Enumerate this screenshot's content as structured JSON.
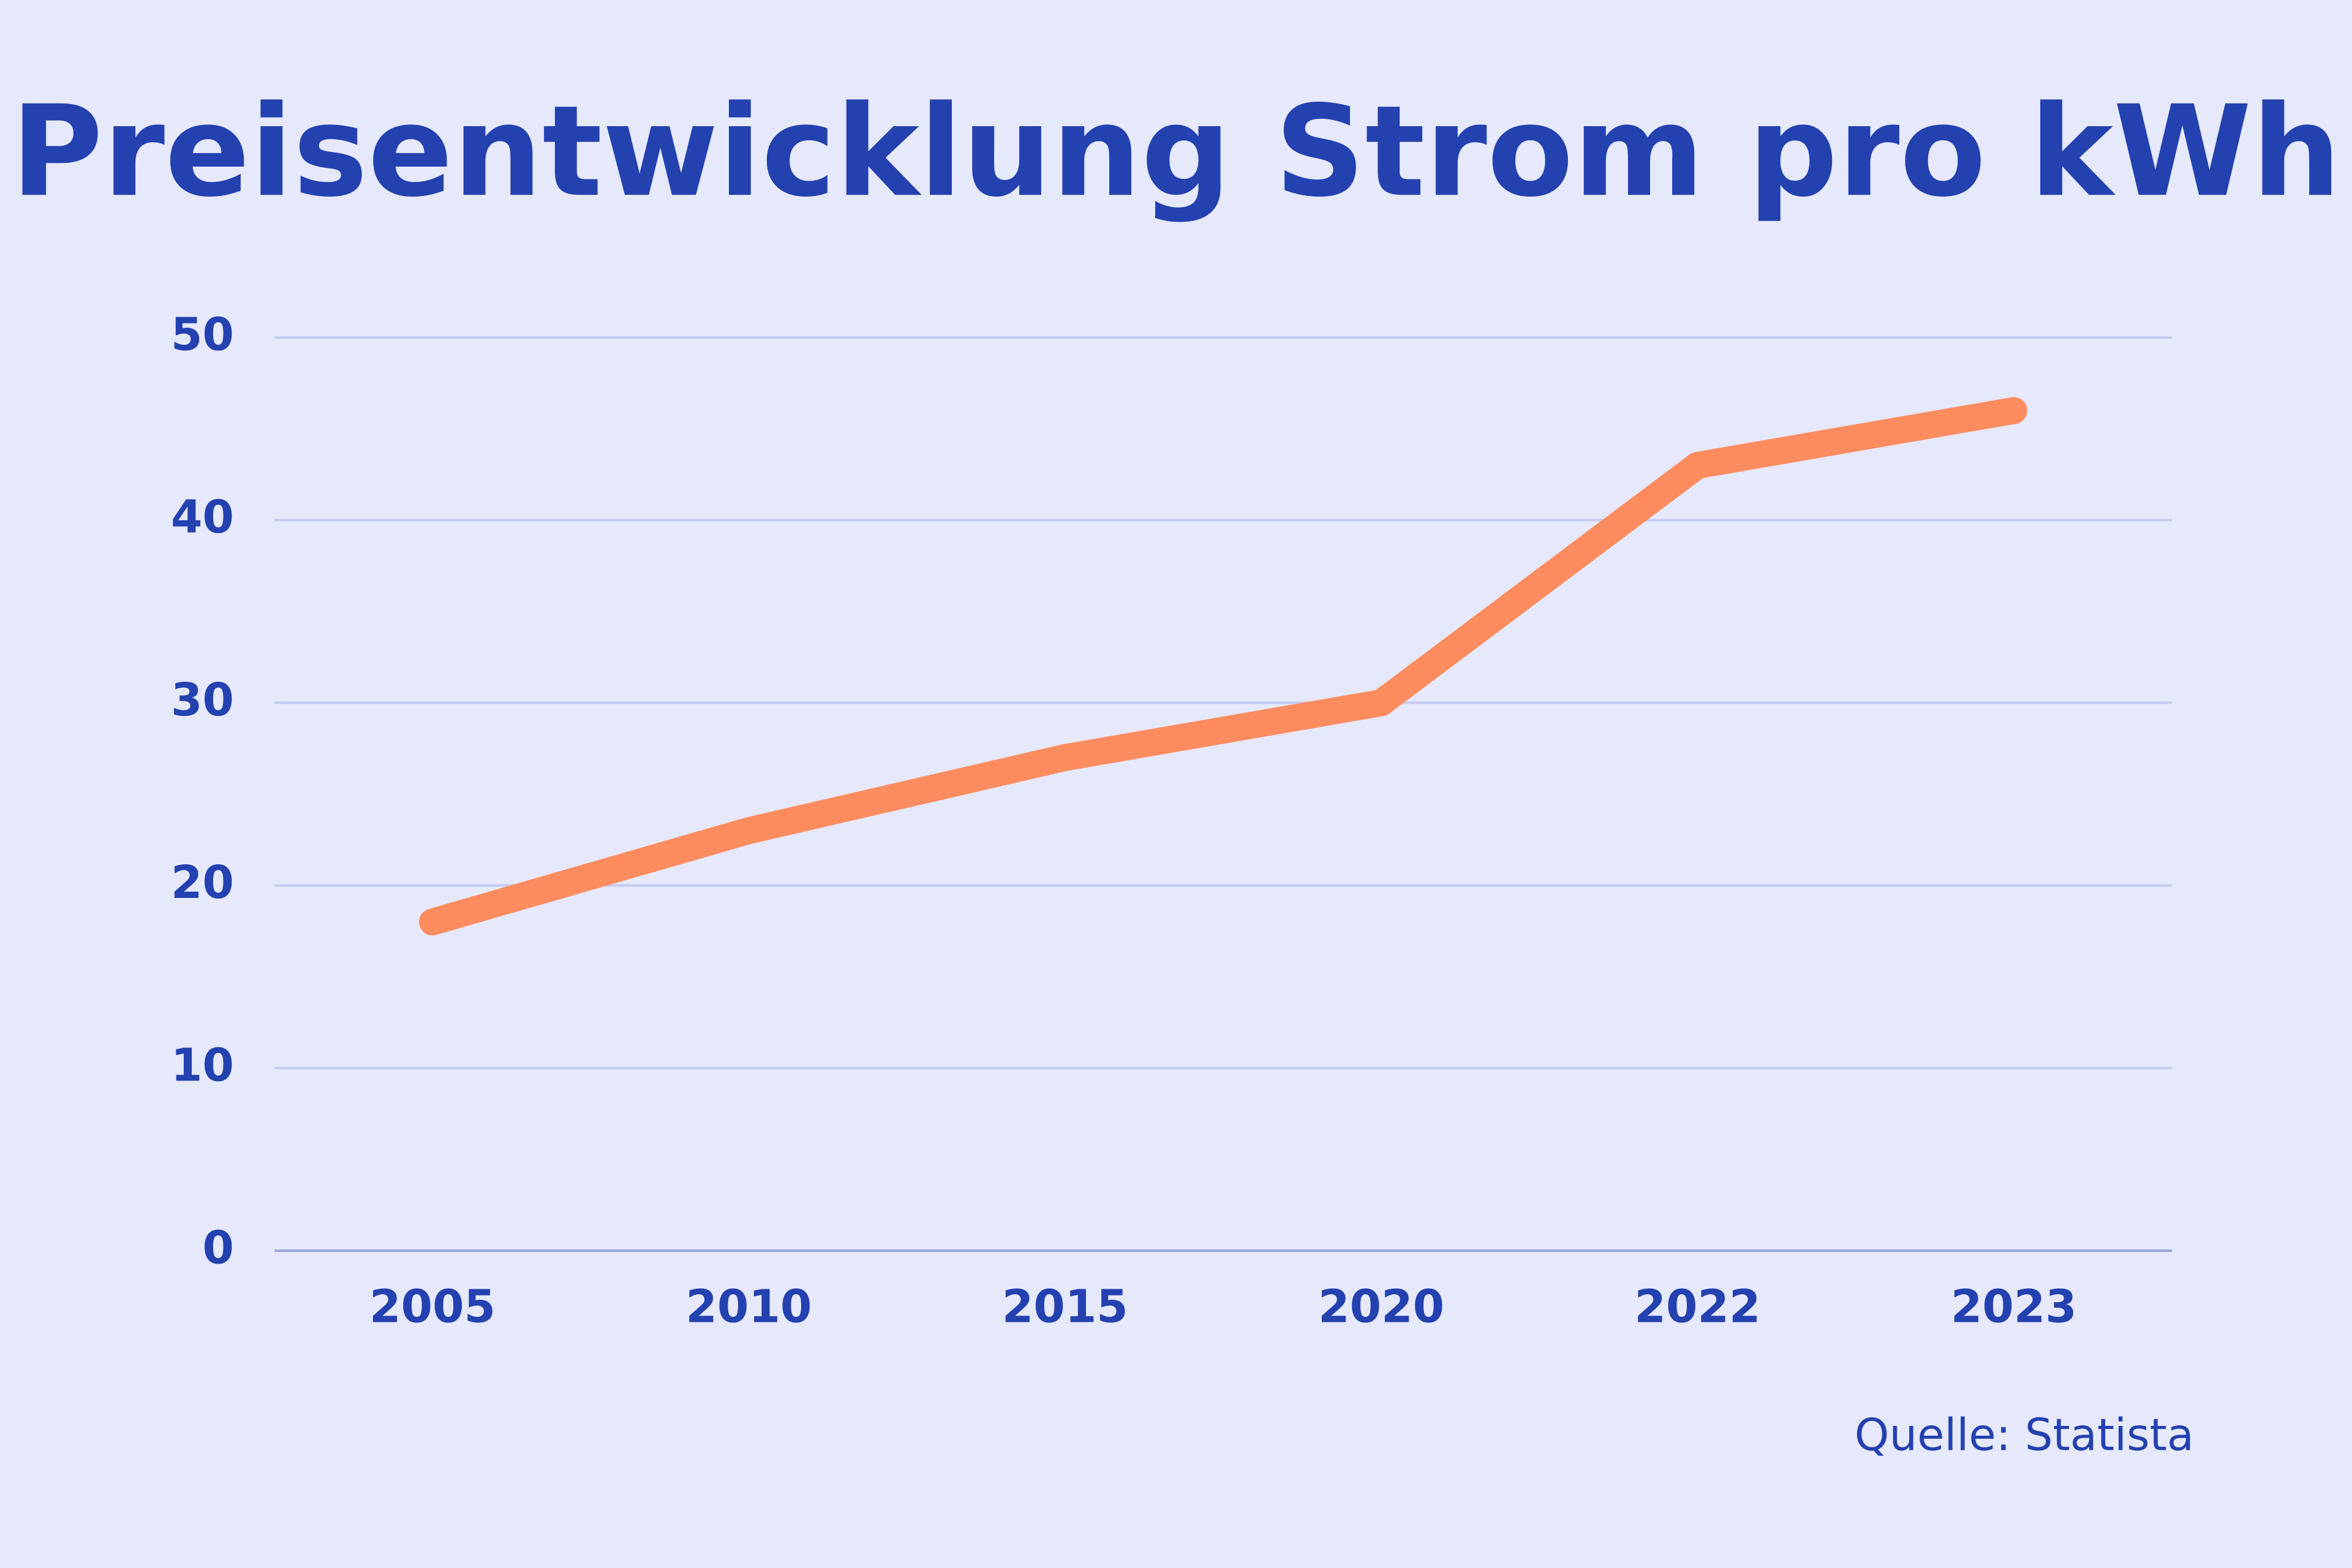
{
  "chart_data": {
    "type": "line",
    "title": "Preisentwicklung Strom pro kWh",
    "categories": [
      "2005",
      "2010",
      "2015",
      "2020",
      "2022",
      "2023"
    ],
    "values": [
      18,
      23,
      27,
      30,
      43,
      46
    ],
    "color": "#ff8c5f",
    "ylim": [
      0,
      50
    ],
    "yticks": [
      0,
      10,
      20,
      30,
      40,
      50
    ],
    "grid": true,
    "source": "Quelle: Statista"
  }
}
